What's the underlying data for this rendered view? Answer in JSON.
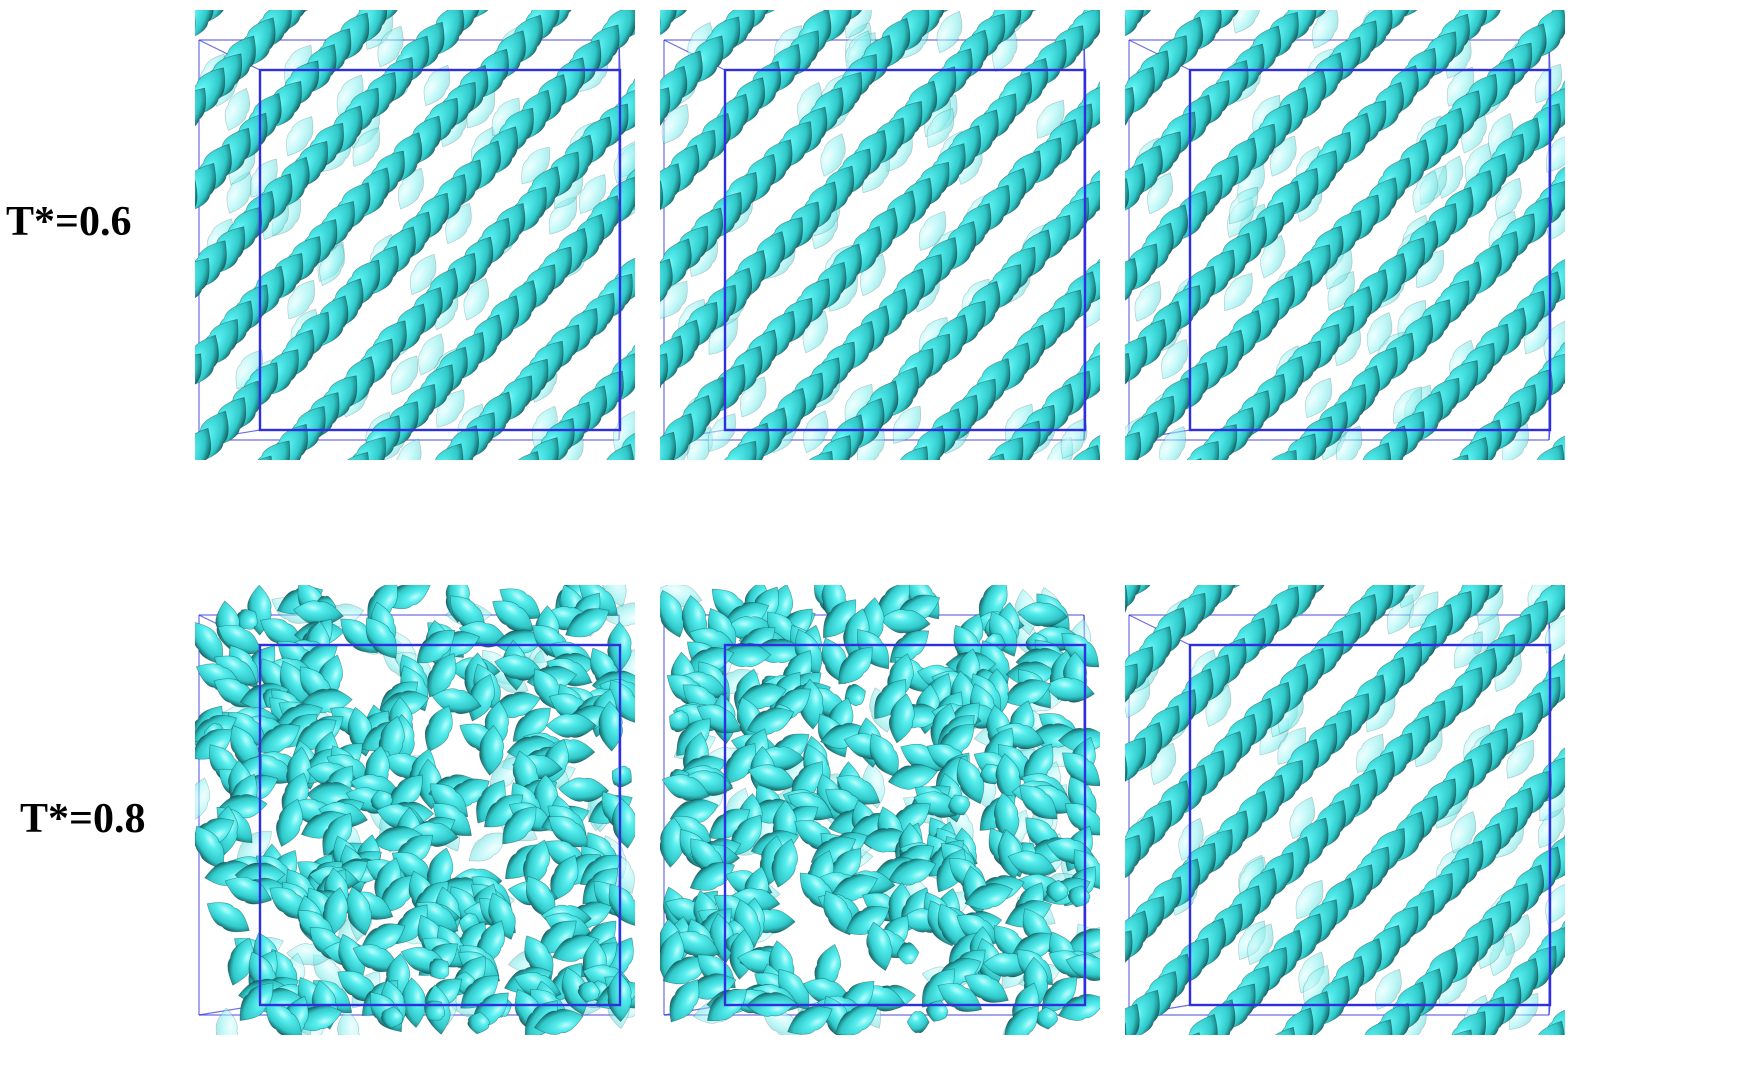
{
  "rows": [
    {
      "label": "T*=0.6",
      "phase": [
        "ordered-diagonal",
        "ordered-diagonal",
        "ordered-diagonal"
      ]
    },
    {
      "label": "T*=0.8",
      "phase": [
        "disordered",
        "disordered",
        "ordered-diagonal"
      ]
    }
  ],
  "colors": {
    "particle_light": "#55eded",
    "particle_mid": "#2fc7c7",
    "particle_dark": "#0f3e42",
    "box_edge": "#2f2fe0",
    "background": "#ffffff"
  }
}
